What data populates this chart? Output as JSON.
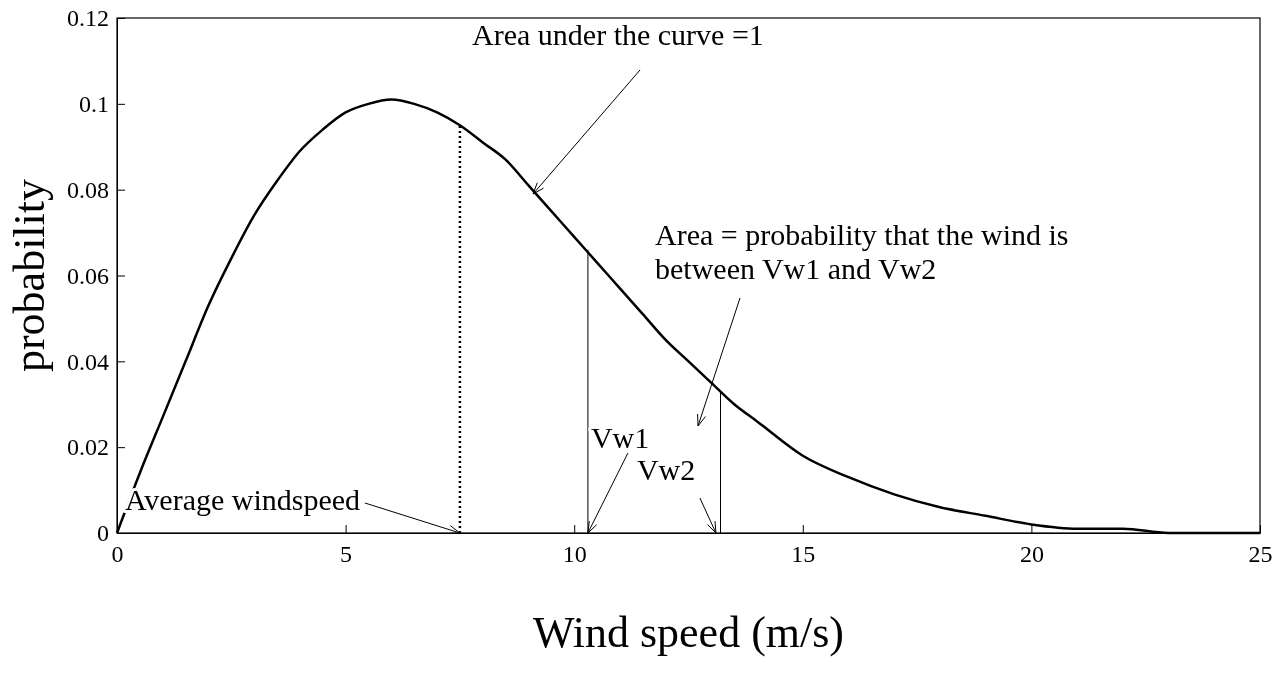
{
  "chart_data": {
    "type": "line",
    "xlabel": "Wind speed (m/s)",
    "ylabel": "probability",
    "xlim": [
      0,
      25
    ],
    "xticks": [
      0,
      5,
      10,
      15,
      20,
      25
    ],
    "ylim": [
      0,
      0.12
    ],
    "yticks": [
      0,
      0.02,
      0.04,
      0.06,
      0.08,
      0.1,
      0.12
    ],
    "series": [
      {
        "color": "#000000",
        "line_style": "solid",
        "x": [
          0,
          0.5,
          1,
          1.5,
          2,
          2.5,
          3,
          3.5,
          4,
          4.5,
          5,
          5.5,
          6,
          6.5,
          7,
          7.5,
          8,
          8.5,
          9,
          9.5,
          10,
          10.5,
          11,
          11.5,
          12,
          12.5,
          13,
          13.5,
          14,
          15,
          16,
          17,
          18,
          19,
          20,
          21,
          22,
          23,
          24,
          25
        ],
        "values": [
          0,
          0.014,
          0.027,
          0.04,
          0.053,
          0.064,
          0.074,
          0.082,
          0.089,
          0.094,
          0.098,
          0.1,
          0.101,
          0.1,
          0.098,
          0.095,
          0.091,
          0.087,
          0.081,
          0.075,
          0.069,
          0.063,
          0.057,
          0.051,
          0.045,
          0.04,
          0.035,
          0.03,
          0.026,
          0.018,
          0.013,
          0.009,
          0.006,
          0.004,
          0.002,
          0.001,
          0.001,
          0,
          0,
          0
        ]
      },
      {
        "color": "#000000",
        "line_style": "dotted",
        "x": [
          7.5,
          7.5
        ],
        "values": [
          0,
          0.095
        ]
      },
      {
        "color": "#000000",
        "line_style": "solid",
        "x": [
          10.3,
          10.3
        ],
        "values": [
          0,
          0.066
        ]
      },
      {
        "color": "#000000",
        "line_style": "solid",
        "x": [
          13.2,
          13.2
        ],
        "values": [
          0,
          0.033
        ]
      }
    ],
    "annotations": [
      {
        "text": "Area under the curve =1",
        "x": 9.1,
        "y": 0.079
      },
      "Area = probability that the wind is\nbetween Vw1 and Vw2",
      {
        "text": "Average windspeed",
        "x": 7.5,
        "y": 0
      },
      {
        "text": "Vw1",
        "x": 10.3,
        "y": 0
      },
      {
        "text": "Vw2",
        "x": 13.1,
        "y": 0
      }
    ]
  }
}
